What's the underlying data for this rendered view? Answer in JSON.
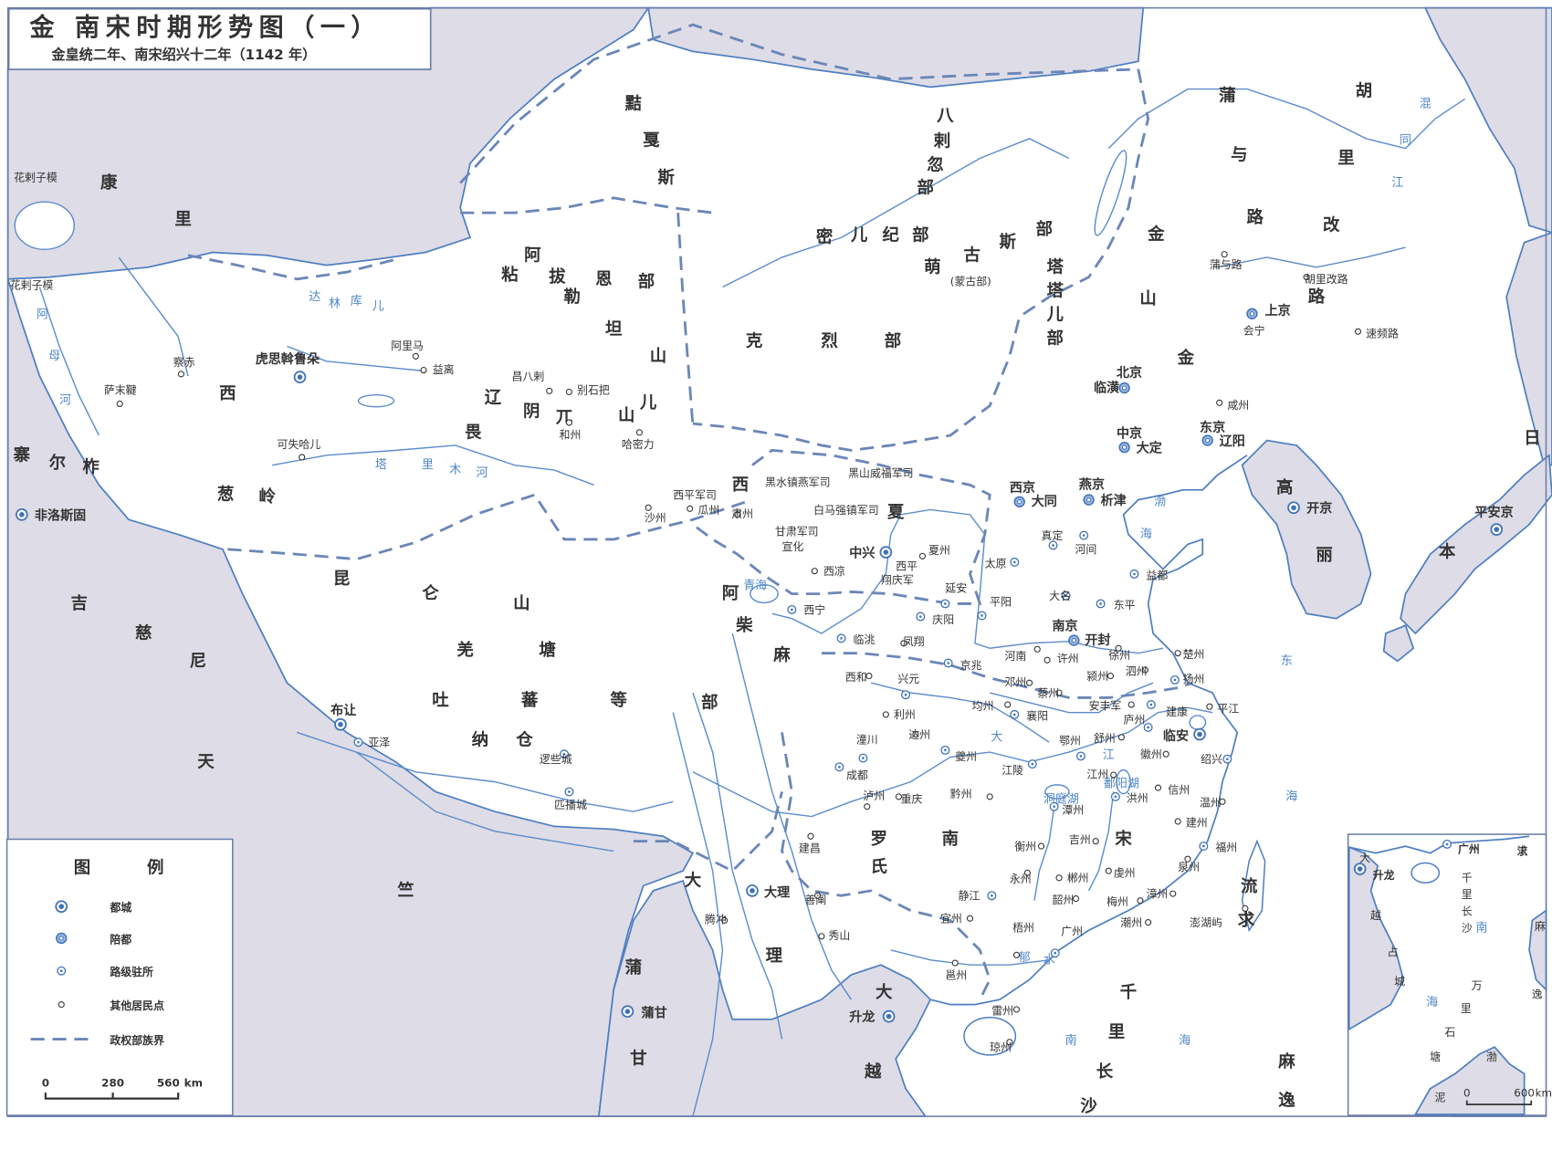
{
  "title": {
    "main": "金  南宋时期形势图（一）",
    "sub": "金皇统二年、南宋绍兴十二年（1142 年）"
  },
  "colors": {
    "foreign_land": "#dedce6",
    "water_and_rivers": "#4f7fc0",
    "boundary": "#6b86b8",
    "land": "#ffffff"
  },
  "legend": {
    "heading": [
      "图",
      "例"
    ],
    "items": [
      {
        "symbol": "capital",
        "label": "都城"
      },
      {
        "symbol": "secondary",
        "label": "陪都"
      },
      {
        "symbol": "route",
        "label": "路级驻所"
      },
      {
        "symbol": "settlement",
        "label": "其他居民点"
      },
      {
        "symbol": "boundary",
        "label": "政权部族界"
      }
    ],
    "scale": {
      "ticks": [
        "0",
        "280",
        "560"
      ],
      "unit": "km"
    }
  },
  "regions": [
    {
      "name": "康里"
    },
    {
      "name": "黠戛斯"
    },
    {
      "name": "八剌忽部"
    },
    {
      "name": "粘拔恩部"
    },
    {
      "name": "阿勒坦山"
    },
    {
      "name": "克烈部"
    },
    {
      "name": "密儿纪部"
    },
    {
      "name": "萌古斯部"
    },
    {
      "name": "塔塔儿部"
    },
    {
      "name": "蒲与路"
    },
    {
      "name": "胡里改路"
    },
    {
      "name": "金山"
    },
    {
      "name": "金"
    },
    {
      "name": "西辽"
    },
    {
      "name": "畏兀儿"
    },
    {
      "name": "阴山"
    },
    {
      "name": "葱岭"
    },
    {
      "name": "昆仑山"
    },
    {
      "name": "寨尔柞"
    },
    {
      "name": "吉慈尼"
    },
    {
      "name": "天竺"
    },
    {
      "name": "羌塘"
    },
    {
      "name": "吐蕃等部"
    },
    {
      "name": "纳仓"
    },
    {
      "name": "西夏"
    },
    {
      "name": "阿柴"
    },
    {
      "name": "麻"
    },
    {
      "name": "南宋"
    },
    {
      "name": "罗氏"
    },
    {
      "name": "大理"
    },
    {
      "name": "大越"
    },
    {
      "name": "蒲甘"
    },
    {
      "name": "高丽"
    },
    {
      "name": "日本"
    },
    {
      "name": "流求"
    },
    {
      "name": "麻逸"
    },
    {
      "name": "千里长沙"
    }
  ],
  "water_labels": [
    {
      "name": "渤海"
    },
    {
      "name": "东海"
    },
    {
      "name": "南海"
    },
    {
      "name": "混同江"
    },
    {
      "name": "阿母河"
    },
    {
      "name": "塔里木河"
    },
    {
      "name": "达林库儿"
    },
    {
      "name": "大江"
    },
    {
      "name": "郁水"
    },
    {
      "name": "鄱阳湖"
    },
    {
      "name": "洞庭湖"
    },
    {
      "name": "青海"
    }
  ],
  "text_labels": [
    {
      "name": "花剌子模"
    },
    {
      "name": "花剌子模"
    },
    {
      "name": "会宁"
    },
    {
      "name": "北京"
    },
    {
      "name": "中京"
    },
    {
      "name": "东京"
    },
    {
      "name": "西京"
    },
    {
      "name": "燕京"
    },
    {
      "name": "南京"
    },
    {
      "name": "黑水镇燕军司"
    },
    {
      "name": "黑山威福军司"
    },
    {
      "name": "白马强镇军司"
    },
    {
      "name": "西平军司"
    },
    {
      "name": "甘肃军司"
    },
    {
      "name": "宣化"
    },
    {
      "name": "西平"
    },
    {
      "name": "翔庆军"
    },
    {
      "name": "(蒙古部)"
    }
  ],
  "places": [
    {
      "name": "临安",
      "symbol": "capital"
    },
    {
      "name": "中兴",
      "symbol": "capital"
    },
    {
      "name": "开京",
      "symbol": "capital"
    },
    {
      "name": "平安京",
      "symbol": "capital"
    },
    {
      "name": "虎思斡鲁朵",
      "symbol": "capital"
    },
    {
      "name": "大理",
      "symbol": "capital"
    },
    {
      "name": "升龙",
      "symbol": "capital"
    },
    {
      "name": "蒲甘",
      "symbol": "capital"
    },
    {
      "name": "非洛斯固",
      "symbol": "capital"
    },
    {
      "name": "布让",
      "symbol": "capital"
    },
    {
      "name": "上京",
      "symbol": "secondary"
    },
    {
      "name": "临潢",
      "symbol": "secondary"
    },
    {
      "name": "大定",
      "symbol": "secondary"
    },
    {
      "name": "辽阳",
      "symbol": "secondary"
    },
    {
      "name": "大同",
      "symbol": "secondary"
    },
    {
      "name": "析津",
      "symbol": "secondary"
    },
    {
      "name": "开封",
      "symbol": "secondary"
    },
    {
      "name": "真定",
      "symbol": "route"
    },
    {
      "name": "河间",
      "symbol": "route"
    },
    {
      "name": "太原",
      "symbol": "route"
    },
    {
      "name": "平阳",
      "symbol": "route"
    },
    {
      "name": "大名",
      "symbol": "route"
    },
    {
      "name": "东平",
      "symbol": "route"
    },
    {
      "name": "益都",
      "symbol": "route"
    },
    {
      "name": "京兆",
      "symbol": "route"
    },
    {
      "name": "庆阳",
      "symbol": "route"
    },
    {
      "name": "延安",
      "symbol": "route"
    },
    {
      "name": "临洮",
      "symbol": "route"
    },
    {
      "name": "兴元",
      "symbol": "route"
    },
    {
      "name": "潼川",
      "symbol": "route"
    },
    {
      "name": "成都",
      "symbol": "route"
    },
    {
      "name": "夔州",
      "symbol": "route"
    },
    {
      "name": "江陵",
      "symbol": "route"
    },
    {
      "name": "襄阳",
      "symbol": "route"
    },
    {
      "name": "鄂州",
      "symbol": "route"
    },
    {
      "name": "庐州",
      "symbol": "route"
    },
    {
      "name": "建康",
      "symbol": "route"
    },
    {
      "name": "扬州",
      "symbol": "route"
    },
    {
      "name": "洪州",
      "symbol": "route"
    },
    {
      "name": "潭州",
      "symbol": "route"
    },
    {
      "name": "福州",
      "symbol": "route"
    },
    {
      "name": "静江",
      "symbol": "route"
    },
    {
      "name": "广州",
      "symbol": "route"
    },
    {
      "name": "绍兴",
      "symbol": "route"
    },
    {
      "name": "西宁",
      "symbol": "route"
    },
    {
      "name": "逻些城",
      "symbol": "route"
    },
    {
      "name": "匹播城",
      "symbol": "route"
    },
    {
      "name": "亚泽",
      "symbol": "route"
    },
    {
      "name": "萨末鞬",
      "symbol": "settlement"
    },
    {
      "name": "察赤",
      "symbol": "settlement"
    },
    {
      "name": "阿里马",
      "symbol": "settlement"
    },
    {
      "name": "益离",
      "symbol": "settlement"
    },
    {
      "name": "昌八剌",
      "symbol": "settlement"
    },
    {
      "name": "别石把",
      "symbol": "settlement"
    },
    {
      "name": "和州",
      "symbol": "settlement"
    },
    {
      "name": "哈密力",
      "symbol": "settlement"
    },
    {
      "name": "可失哈儿",
      "symbol": "settlement"
    },
    {
      "name": "沙州",
      "symbol": "settlement"
    },
    {
      "name": "瓜州",
      "symbol": "settlement"
    },
    {
      "name": "肃州",
      "symbol": "settlement"
    },
    {
      "name": "西凉",
      "symbol": "settlement"
    },
    {
      "name": "夏州",
      "symbol": "settlement"
    },
    {
      "name": "凤翔",
      "symbol": "settlement"
    },
    {
      "name": "西和",
      "symbol": "settlement"
    },
    {
      "name": "利州",
      "symbol": "settlement"
    },
    {
      "name": "达州",
      "symbol": "settlement"
    },
    {
      "name": "均州",
      "symbol": "settlement"
    },
    {
      "name": "邓州",
      "symbol": "settlement"
    },
    {
      "name": "河南",
      "symbol": "settlement"
    },
    {
      "name": "许州",
      "symbol": "settlement"
    },
    {
      "name": "徐州",
      "symbol": "settlement"
    },
    {
      "name": "泗州",
      "symbol": "settlement"
    },
    {
      "name": "颍州",
      "symbol": "settlement"
    },
    {
      "name": "蔡州",
      "symbol": "settlement"
    },
    {
      "name": "楚州",
      "symbol": "settlement"
    },
    {
      "name": "安丰军",
      "symbol": "settlement"
    },
    {
      "name": "平江",
      "symbol": "settlement"
    },
    {
      "name": "舒州",
      "symbol": "settlement"
    },
    {
      "name": "徽州",
      "symbol": "settlement"
    },
    {
      "name": "江州",
      "symbol": "settlement"
    },
    {
      "name": "信州",
      "symbol": "settlement"
    },
    {
      "name": "温州",
      "symbol": "settlement"
    },
    {
      "name": "建州",
      "symbol": "settlement"
    },
    {
      "name": "吉州",
      "symbol": "settlement"
    },
    {
      "name": "衡州",
      "symbol": "settlement"
    },
    {
      "name": "永州",
      "symbol": "settlement"
    },
    {
      "name": "郴州",
      "symbol": "settlement"
    },
    {
      "name": "虔州",
      "symbol": "settlement"
    },
    {
      "name": "泉州",
      "symbol": "settlement"
    },
    {
      "name": "漳州",
      "symbol": "settlement"
    },
    {
      "name": "梅州",
      "symbol": "settlement"
    },
    {
      "name": "潮州",
      "symbol": "settlement"
    },
    {
      "name": "韶州",
      "symbol": "settlement"
    },
    {
      "name": "梧州",
      "symbol": "settlement"
    },
    {
      "name": "宜州",
      "symbol": "settlement"
    },
    {
      "name": "邕州",
      "symbol": "settlement"
    },
    {
      "name": "雷州",
      "symbol": "settlement"
    },
    {
      "name": "琼州",
      "symbol": "settlement"
    },
    {
      "name": "黔州",
      "symbol": "settlement"
    },
    {
      "name": "重庆",
      "symbol": "settlement"
    },
    {
      "name": "泸州",
      "symbol": "settlement"
    },
    {
      "name": "建昌",
      "symbol": "settlement"
    },
    {
      "name": "善阐",
      "symbol": "settlement"
    },
    {
      "name": "秀山",
      "symbol": "settlement"
    },
    {
      "name": "腾冲",
      "symbol": "settlement"
    },
    {
      "name": "澎湖屿",
      "symbol": "settlement"
    },
    {
      "name": "蒲与路",
      "symbol": "settlement"
    },
    {
      "name": "胡里改路",
      "symbol": "settlement"
    },
    {
      "name": "速频路",
      "symbol": "settlement"
    },
    {
      "name": "咸州",
      "symbol": "settlement"
    }
  ],
  "inset": {
    "places": [
      {
        "name": "广州",
        "symbol": "route"
      },
      {
        "name": "升龙",
        "symbol": "capital"
      }
    ],
    "regions": [
      {
        "name": "大越"
      },
      {
        "name": "占城"
      },
      {
        "name": "千里长沙"
      },
      {
        "name": "万里石塘"
      },
      {
        "name": "流求"
      },
      {
        "name": "麻逸"
      },
      {
        "name": "渤泥"
      }
    ],
    "water": [
      {
        "name": "南海"
      }
    ],
    "scale": {
      "ticks": [
        "0",
        "600"
      ],
      "unit": "km"
    }
  }
}
